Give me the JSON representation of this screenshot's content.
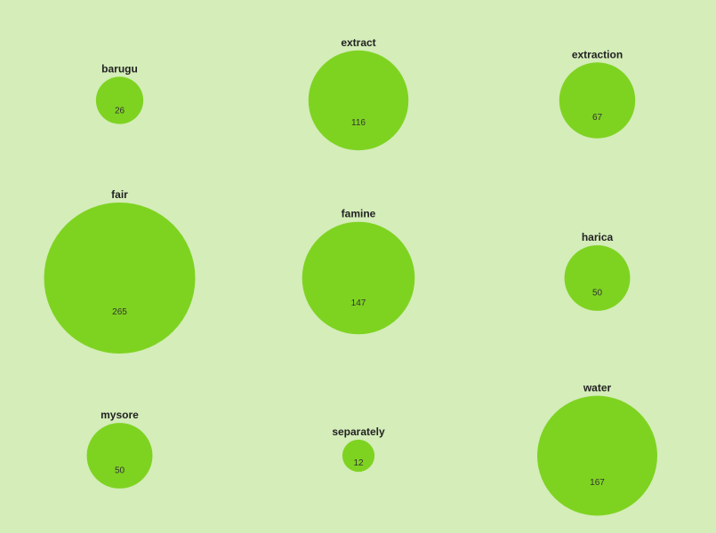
{
  "colors": {
    "background": "#d4edb9",
    "bubble": "#7ed321"
  },
  "chart_data": {
    "type": "bubble",
    "layout": "grid",
    "columns": 3,
    "items": [
      {
        "label": "barugu",
        "value": 26
      },
      {
        "label": "extract",
        "value": 116
      },
      {
        "label": "extraction",
        "value": 67
      },
      {
        "label": "fair",
        "value": 265
      },
      {
        "label": "famine",
        "value": 147
      },
      {
        "label": "harica",
        "value": 50
      },
      {
        "label": "mysore",
        "value": 50
      },
      {
        "label": "separately",
        "value": 12
      },
      {
        "label": "water",
        "value": 167
      }
    ]
  }
}
